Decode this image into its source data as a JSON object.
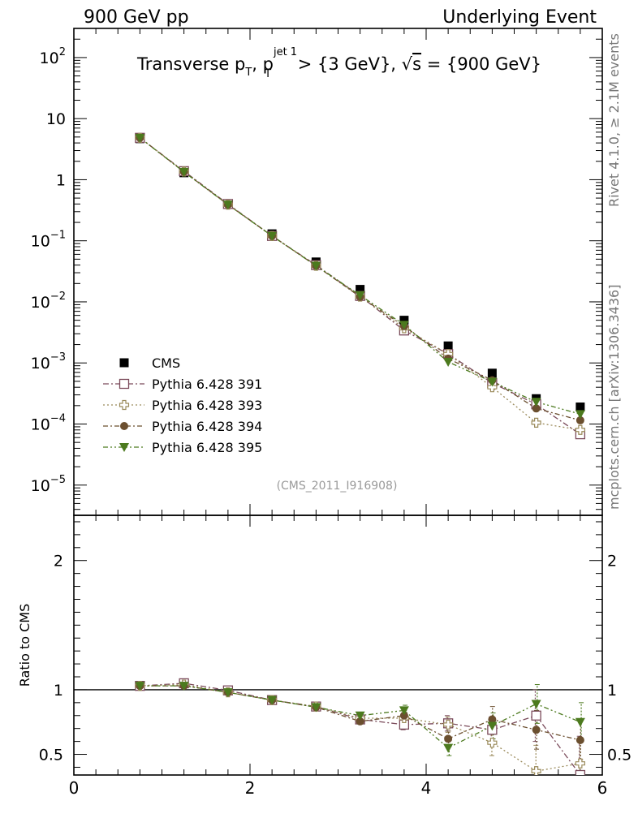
{
  "header": {
    "left_title": "900 GeV pp",
    "right_title": "Underlying Event"
  },
  "side_labels": {
    "rivet": "Rivet 4.1.0, ≥ 2.1M events",
    "mcplots": "mcplots.cern.ch [arXiv:1306.3436]"
  },
  "analysis_tag": "(CMS_2011_I916908)",
  "chart_data": [
    {
      "type": "scatter",
      "panel": "main",
      "title": "Transverse p_T, p_T^jet 1 > {3 GeV}, √s = {900 GeV}",
      "title_parts": {
        "a": "Transverse p",
        "b": "T",
        "c": ", p",
        "d": "jet 1",
        "e": "T",
        "f": " > {3 GeV}, ",
        "g": "s",
        "h": " = {900 GeV}"
      },
      "xlim": [
        0,
        6
      ],
      "ylim": [
        3.2e-06,
        300
      ],
      "yscale": "log",
      "xticks": [
        0,
        2,
        4,
        6
      ],
      "yticks": [
        1e-05,
        0.0001,
        0.001,
        0.01,
        0.1,
        1,
        10,
        100
      ],
      "ytick_labels": [
        {
          "base": "10",
          "exp": "−5"
        },
        {
          "base": "10",
          "exp": "−4"
        },
        {
          "base": "10",
          "exp": "−3"
        },
        {
          "base": "10",
          "exp": "−2"
        },
        {
          "base": "10",
          "exp": "−1"
        },
        {
          "base": "1",
          "exp": ""
        },
        {
          "base": "10",
          "exp": ""
        },
        {
          "base": "10",
          "exp": "2"
        }
      ],
      "legend_position": "bottom-left",
      "x": [
        0.75,
        1.25,
        1.75,
        2.25,
        2.75,
        3.25,
        3.75,
        4.25,
        4.75,
        5.25,
        5.75
      ],
      "series": [
        {
          "name": "CMS",
          "marker": "square-filled",
          "color": "#000000",
          "values": [
            4.7,
            1.3,
            0.4,
            0.13,
            0.045,
            0.016,
            0.005,
            0.0019,
            0.00068,
            0.00026,
            0.00019
          ]
        },
        {
          "name": "Pythia 6.428 391",
          "marker": "square-open",
          "color": "#7a4a5a",
          "dash": "7,3,2,3",
          "values": [
            4.85,
            1.38,
            0.4,
            0.12,
            0.04,
            0.0125,
            0.0034,
            0.0014,
            0.00047,
            0.00021,
            6.8e-05
          ]
        },
        {
          "name": "Pythia 6.428 393",
          "marker": "cross-open",
          "color": "#9a8a5a",
          "dash": "2,3",
          "values": [
            4.85,
            1.36,
            0.39,
            0.12,
            0.039,
            0.0122,
            0.0037,
            0.0014,
            0.0004,
            0.000105,
            8e-05
          ]
        },
        {
          "name": "Pythia 6.428 394",
          "marker": "circle-filled",
          "color": "#6b4f2f",
          "dash": "6,3,2,3",
          "values": [
            4.85,
            1.35,
            0.39,
            0.12,
            0.039,
            0.0121,
            0.004,
            0.00118,
            0.00052,
            0.00018,
            0.000115
          ]
        },
        {
          "name": "Pythia 6.428 395",
          "marker": "triangle-down-filled",
          "color": "#4c7a1e",
          "dash": "6,3,2,3,2,3",
          "values": [
            4.85,
            1.34,
            0.39,
            0.12,
            0.039,
            0.0128,
            0.0042,
            0.00104,
            0.00049,
            0.00023,
            0.000145
          ]
        }
      ]
    },
    {
      "type": "scatter",
      "panel": "ratio",
      "ylabel": "Ratio to CMS",
      "xlim": [
        0,
        6
      ],
      "ylim": [
        0.34,
        2.35
      ],
      "xticks": [
        0,
        2,
        4,
        6
      ],
      "xtick_labels": [
        "0",
        "2",
        "4",
        "6"
      ],
      "yticks": [
        0.5,
        1,
        2
      ],
      "ytick_labels": [
        "0.5",
        "1",
        "2"
      ],
      "x": [
        0.75,
        1.25,
        1.75,
        2.25,
        2.75,
        3.25,
        3.75,
        4.25,
        4.75,
        5.25,
        5.75
      ],
      "series": [
        {
          "name": "Pythia 6.428 391",
          "values": [
            1.03,
            1.05,
            0.995,
            0.92,
            0.87,
            0.77,
            0.73,
            0.74,
            0.69,
            0.8,
            0.34
          ],
          "errors": [
            0.01,
            0.01,
            0.01,
            0.01,
            0.015,
            0.02,
            0.04,
            0.06,
            0.1,
            0.2,
            0.3
          ]
        },
        {
          "name": "Pythia 6.428 393",
          "values": [
            1.03,
            1.04,
            0.98,
            0.92,
            0.87,
            0.78,
            0.78,
            0.73,
            0.59,
            0.37,
            0.43
          ],
          "errors": [
            0.01,
            0.01,
            0.01,
            0.01,
            0.015,
            0.02,
            0.04,
            0.06,
            0.1,
            0.2,
            0.2
          ]
        },
        {
          "name": "Pythia 6.428 394",
          "values": [
            1.03,
            1.03,
            0.98,
            0.92,
            0.865,
            0.755,
            0.8,
            0.62,
            0.77,
            0.69,
            0.61
          ],
          "errors": [
            0.01,
            0.01,
            0.01,
            0.01,
            0.015,
            0.02,
            0.04,
            0.06,
            0.1,
            0.15,
            0.15
          ]
        },
        {
          "name": "Pythia 6.428 395",
          "values": [
            1.03,
            1.03,
            0.98,
            0.92,
            0.865,
            0.8,
            0.84,
            0.55,
            0.72,
            0.89,
            0.75
          ],
          "errors": [
            0.01,
            0.01,
            0.01,
            0.01,
            0.015,
            0.02,
            0.04,
            0.06,
            0.1,
            0.15,
            0.15
          ]
        }
      ]
    }
  ]
}
